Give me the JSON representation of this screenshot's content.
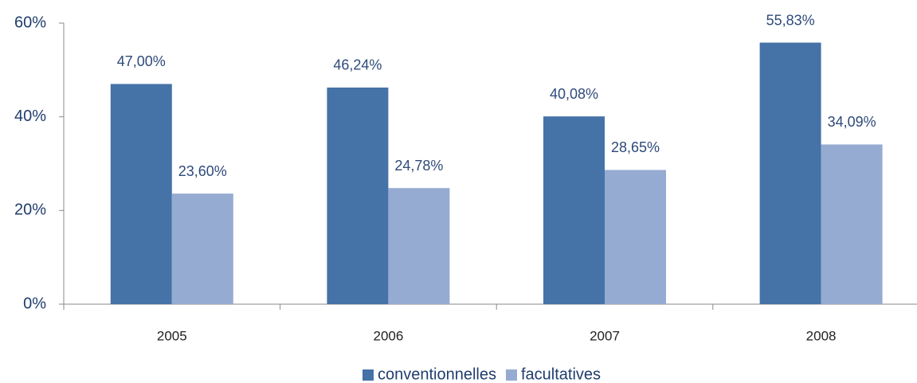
{
  "chart_data": {
    "type": "bar",
    "categories": [
      "2005",
      "2006",
      "2007",
      "2008"
    ],
    "series": [
      {
        "name": "conventionnelles",
        "color": "#4572a7",
        "values": [
          47.0,
          46.24,
          40.08,
          55.83
        ],
        "value_labels": [
          "47,00%",
          "46,24%",
          "40,08%",
          "55,83%"
        ]
      },
      {
        "name": "facultatives",
        "color": "#95abd2",
        "values": [
          23.6,
          24.78,
          28.65,
          34.09
        ],
        "value_labels": [
          "23,60%",
          "24,78%",
          "28,65%",
          "34,09%"
        ]
      }
    ],
    "ylim": [
      0,
      60
    ],
    "yticks": [
      {
        "value": 0,
        "label": "0%"
      },
      {
        "value": 20,
        "label": "20%"
      },
      {
        "value": 40,
        "label": "40%"
      },
      {
        "value": 60,
        "label": "60%"
      }
    ],
    "grid": false,
    "legend": "bottom"
  }
}
